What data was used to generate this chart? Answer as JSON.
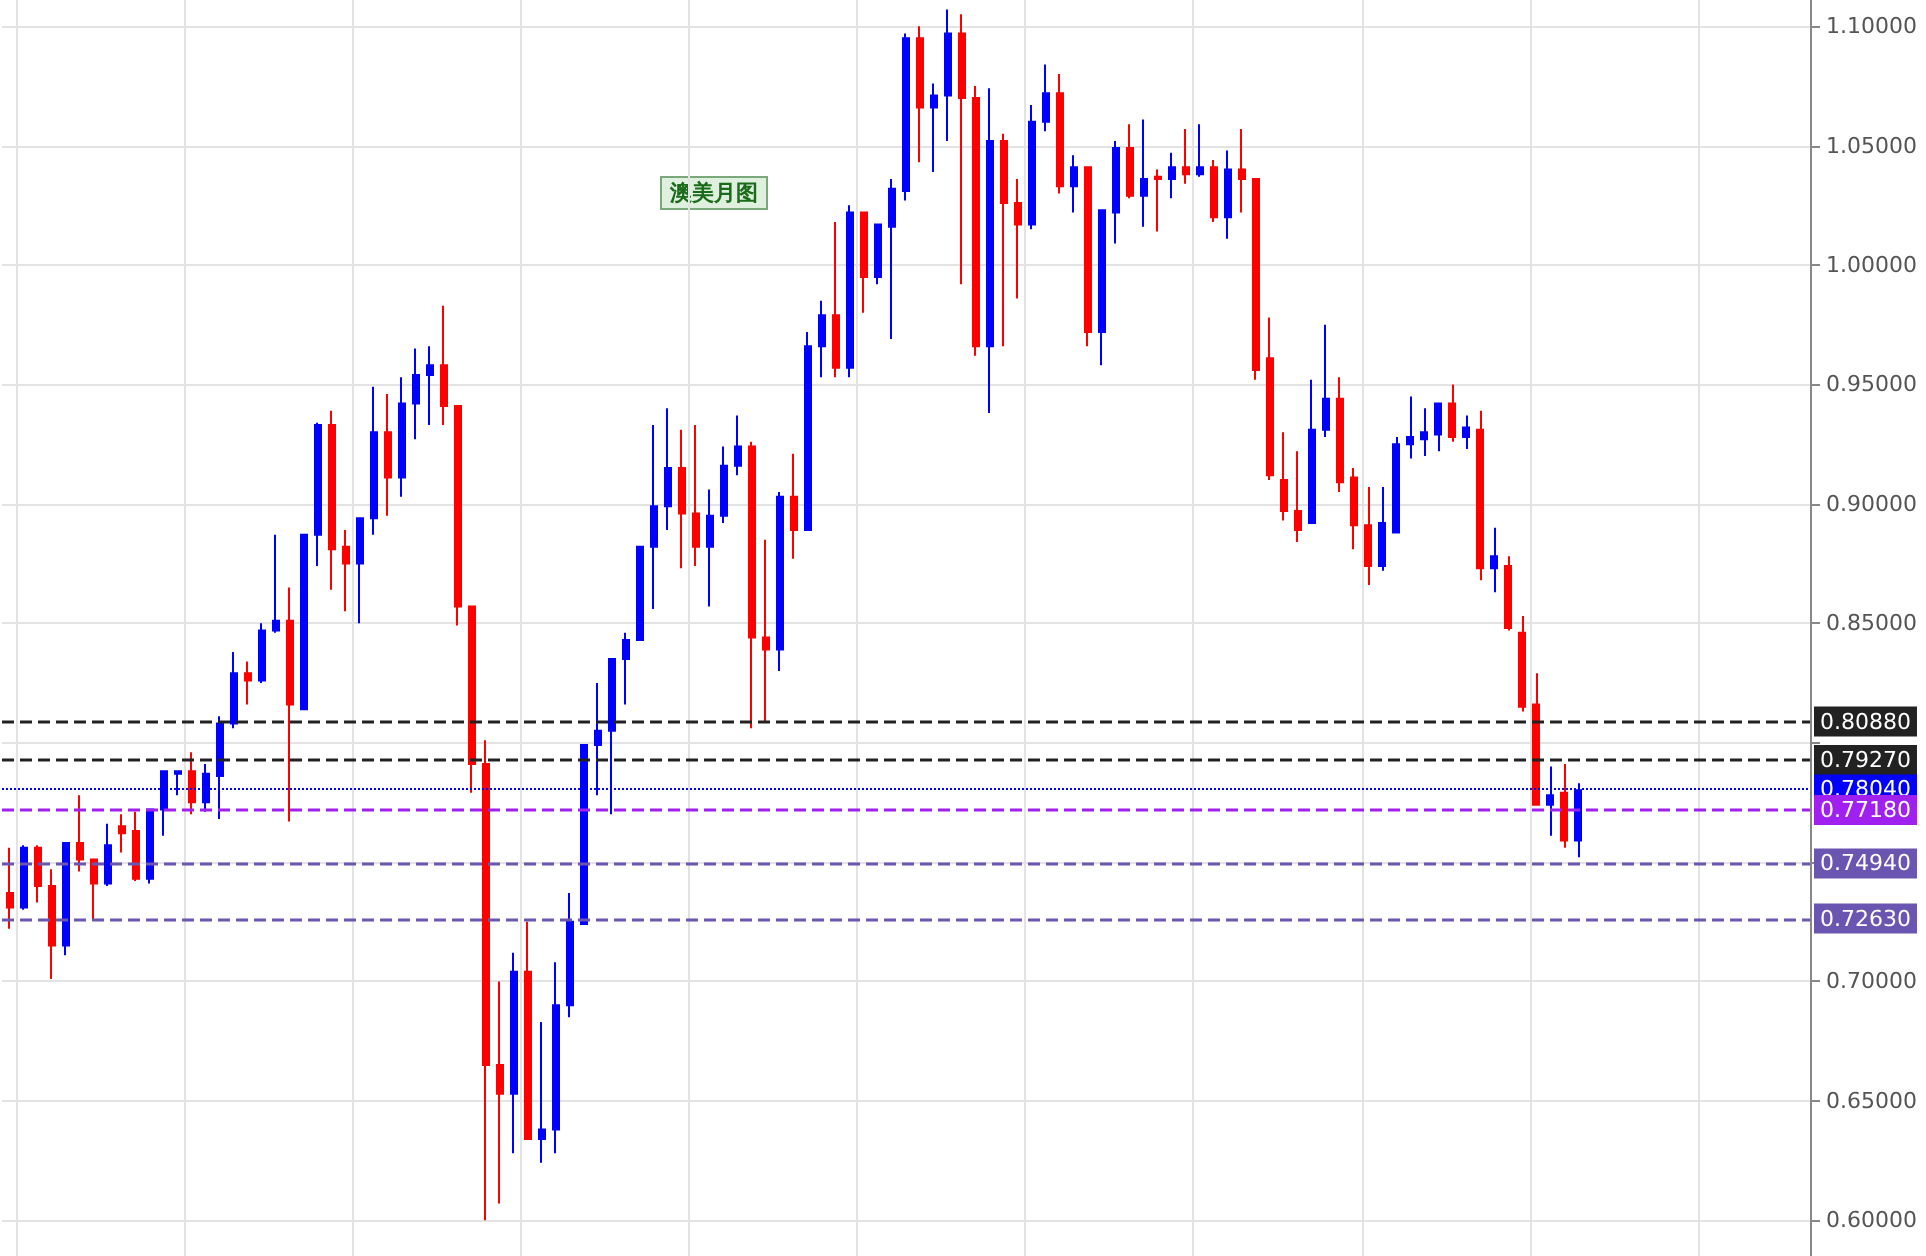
{
  "chart_data": {
    "type": "candlestick",
    "categories": [
      null,
      null,
      null,
      null,
      null,
      null,
      null,
      null,
      null,
      null,
      null,
      null,
      null,
      null,
      null,
      null,
      null,
      null,
      null,
      null,
      null,
      null,
      null,
      null,
      null,
      null,
      null,
      null,
      null,
      null,
      null,
      null,
      null,
      null,
      null,
      null,
      null,
      null,
      null,
      null,
      null,
      null,
      null,
      null,
      null,
      null,
      null,
      null,
      null,
      null,
      null,
      null,
      null,
      null,
      null,
      null,
      null,
      null,
      null,
      null,
      null,
      null,
      null,
      null,
      null,
      null,
      null,
      null,
      null,
      null,
      null,
      null,
      null,
      null,
      null,
      null,
      null,
      null,
      null,
      null,
      null,
      null,
      null,
      null,
      null,
      null,
      null,
      null,
      null,
      null,
      null,
      null,
      null,
      null,
      null,
      null,
      null,
      null,
      null,
      null,
      null,
      null,
      null,
      null,
      null,
      null,
      null,
      null,
      null,
      null,
      null,
      null,
      null,
      null,
      null,
      null,
      null,
      null,
      null,
      null,
      null,
      null,
      null,
      null,
      null,
      null,
      null,
      null,
      null
    ],
    "ohlc": [
      [
        0.737,
        0.756,
        0.722,
        0.731
      ],
      [
        0.731,
        0.757,
        0.73,
        0.756
      ],
      [
        0.756,
        0.757,
        0.733,
        0.74
      ],
      [
        0.74,
        0.747,
        0.701,
        0.715
      ],
      [
        0.715,
        0.758,
        0.711,
        0.758
      ],
      [
        0.758,
        0.778,
        0.746,
        0.751
      ],
      [
        0.751,
        0.751,
        0.726,
        0.741
      ],
      [
        0.741,
        0.766,
        0.74,
        0.757
      ],
      [
        0.765,
        0.77,
        0.754,
        0.762
      ],
      [
        0.763,
        0.771,
        0.742,
        0.743
      ],
      [
        0.743,
        0.772,
        0.741,
        0.772
      ],
      [
        0.772,
        0.788,
        0.761,
        0.788
      ],
      [
        0.787,
        0.788,
        0.778,
        0.788
      ],
      [
        0.788,
        0.796,
        0.77,
        0.775
      ],
      [
        0.775,
        0.791,
        0.771,
        0.787
      ],
      [
        0.786,
        0.811,
        0.768,
        0.808
      ],
      [
        0.808,
        0.838,
        0.806,
        0.829
      ],
      [
        0.829,
        0.834,
        0.816,
        0.826
      ],
      [
        0.826,
        0.85,
        0.825,
        0.847
      ],
      [
        0.847,
        0.887,
        0.846,
        0.851
      ],
      [
        0.851,
        0.865,
        0.767,
        0.816
      ],
      [
        0.814,
        0.887,
        0.814,
        0.887
      ],
      [
        0.887,
        0.934,
        0.874,
        0.933
      ],
      [
        0.933,
        0.939,
        0.864,
        0.881
      ],
      [
        0.882,
        0.889,
        0.855,
        0.875
      ],
      [
        0.875,
        0.894,
        0.85,
        0.894
      ],
      [
        0.894,
        0.949,
        0.887,
        0.93
      ],
      [
        0.93,
        0.946,
        0.895,
        0.911
      ],
      [
        0.911,
        0.953,
        0.903,
        0.942
      ],
      [
        0.942,
        0.965,
        0.927,
        0.954
      ],
      [
        0.954,
        0.966,
        0.933,
        0.958
      ],
      [
        0.958,
        0.983,
        0.933,
        0.941
      ],
      [
        0.941,
        0.941,
        0.849,
        0.857
      ],
      [
        0.857,
        0.857,
        0.779,
        0.791
      ],
      [
        0.791,
        0.801,
        0.6,
        0.665
      ],
      [
        0.665,
        0.7,
        0.607,
        0.653
      ],
      [
        0.653,
        0.712,
        0.628,
        0.704
      ],
      [
        0.704,
        0.725,
        0.634,
        0.634
      ],
      [
        0.634,
        0.683,
        0.624,
        0.638
      ],
      [
        0.638,
        0.708,
        0.628,
        0.69
      ],
      [
        0.69,
        0.737,
        0.685,
        0.725
      ],
      [
        0.724,
        0.799,
        0.724,
        0.799
      ],
      [
        0.799,
        0.825,
        0.778,
        0.805
      ],
      [
        0.805,
        0.835,
        0.77,
        0.835
      ],
      [
        0.835,
        0.846,
        0.816,
        0.843
      ],
      [
        0.843,
        0.882,
        0.843,
        0.882
      ],
      [
        0.882,
        0.933,
        0.856,
        0.899
      ],
      [
        0.899,
        0.94,
        0.889,
        0.915
      ],
      [
        0.915,
        0.931,
        0.873,
        0.896
      ],
      [
        0.896,
        0.933,
        0.874,
        0.882
      ],
      [
        0.882,
        0.906,
        0.857,
        0.895
      ],
      [
        0.895,
        0.924,
        0.892,
        0.916
      ],
      [
        0.916,
        0.937,
        0.912,
        0.924
      ],
      [
        0.924,
        0.926,
        0.806,
        0.844
      ],
      [
        0.844,
        0.885,
        0.809,
        0.839
      ],
      [
        0.839,
        0.905,
        0.83,
        0.903
      ],
      [
        0.903,
        0.921,
        0.877,
        0.889
      ],
      [
        0.889,
        0.972,
        0.889,
        0.966
      ],
      [
        0.966,
        0.985,
        0.953,
        0.979
      ],
      [
        0.979,
        1.018,
        0.953,
        0.957
      ],
      [
        0.957,
        1.025,
        0.953,
        1.022
      ],
      [
        1.022,
        1.022,
        0.98,
        0.995
      ],
      [
        0.995,
        1.017,
        0.992,
        1.017
      ],
      [
        1.016,
        1.036,
        0.969,
        1.032
      ],
      [
        1.031,
        1.097,
        1.027,
        1.095
      ],
      [
        1.095,
        1.1,
        1.043,
        1.066
      ],
      [
        1.066,
        1.076,
        1.039,
        1.071
      ],
      [
        1.071,
        1.107,
        1.052,
        1.097
      ],
      [
        1.097,
        1.105,
        0.992,
        1.07
      ],
      [
        1.07,
        1.075,
        0.962,
        0.966
      ],
      [
        0.966,
        1.074,
        0.938,
        1.052
      ],
      [
        1.052,
        1.055,
        0.966,
        1.026
      ],
      [
        1.026,
        1.036,
        0.986,
        1.017
      ],
      [
        1.017,
        1.067,
        1.015,
        1.06
      ],
      [
        1.06,
        1.084,
        1.056,
        1.072
      ],
      [
        1.072,
        1.08,
        1.03,
        1.033
      ],
      [
        1.033,
        1.046,
        1.022,
        1.041
      ],
      [
        1.041,
        1.041,
        0.966,
        0.972
      ],
      [
        0.972,
        1.023,
        0.958,
        1.023
      ],
      [
        1.022,
        1.052,
        1.009,
        1.049
      ],
      [
        1.049,
        1.059,
        1.028,
        1.029
      ],
      [
        1.029,
        1.061,
        1.016,
        1.036
      ],
      [
        1.037,
        1.04,
        1.014,
        1.036
      ],
      [
        1.036,
        1.047,
        1.028,
        1.041
      ],
      [
        1.041,
        1.057,
        1.034,
        1.038
      ],
      [
        1.038,
        1.059,
        1.037,
        1.041
      ],
      [
        1.041,
        1.044,
        1.018,
        1.02
      ],
      [
        1.02,
        1.048,
        1.011,
        1.04
      ],
      [
        1.04,
        1.057,
        1.022,
        1.036
      ],
      [
        1.036,
        1.036,
        0.952,
        0.956
      ],
      [
        0.961,
        0.978,
        0.91,
        0.912
      ],
      [
        0.91,
        0.93,
        0.893,
        0.897
      ],
      [
        0.897,
        0.922,
        0.884,
        0.889
      ],
      [
        0.892,
        0.952,
        0.892,
        0.931
      ],
      [
        0.931,
        0.975,
        0.928,
        0.944
      ],
      [
        0.944,
        0.953,
        0.905,
        0.909
      ],
      [
        0.911,
        0.915,
        0.881,
        0.891
      ],
      [
        0.891,
        0.907,
        0.866,
        0.874
      ],
      [
        0.874,
        0.907,
        0.872,
        0.892
      ],
      [
        0.888,
        0.928,
        0.888,
        0.925
      ],
      [
        0.925,
        0.945,
        0.919,
        0.928
      ],
      [
        0.927,
        0.94,
        0.92,
        0.93
      ],
      [
        0.929,
        0.942,
        0.922,
        0.942
      ],
      [
        0.942,
        0.95,
        0.926,
        0.928
      ],
      [
        0.928,
        0.937,
        0.923,
        0.932
      ],
      [
        0.931,
        0.939,
        0.868,
        0.873
      ],
      [
        0.873,
        0.89,
        0.863,
        0.878
      ],
      [
        0.874,
        0.878,
        0.847,
        0.848
      ],
      [
        0.846,
        0.853,
        0.813,
        0.815
      ],
      [
        0.816,
        0.829,
        0.774,
        0.774
      ],
      [
        0.774,
        0.79,
        0.761,
        0.778
      ],
      [
        0.779,
        0.791,
        0.756,
        0.759
      ],
      [
        0.759,
        0.783,
        0.752,
        0.78
      ],
      null,
      null,
      null,
      null,
      null,
      null,
      null,
      null,
      null,
      null,
      null,
      null,
      null,
      null,
      null,
      null
    ],
    "colors": [
      "#ff0000",
      "#0000ff",
      "#ff0000",
      "#ff0000",
      "#0000ff",
      "#ff0000",
      "#ff0000",
      "#0000ff",
      "#ff0000",
      "#ff0000",
      "#0000ff",
      "#0000ff",
      "#0000ff",
      "#ff0000",
      "#0000ff",
      "#0000ff",
      "#0000ff",
      "#ff0000",
      "#0000ff",
      "#0000ff",
      "#ff0000",
      "#0000ff",
      "#0000ff",
      "#ff0000",
      "#ff0000",
      "#0000ff",
      "#0000ff",
      "#ff0000",
      "#0000ff",
      "#0000ff",
      "#0000ff",
      "#ff0000",
      "#ff0000",
      "#ff0000",
      "#ff0000",
      "#ff0000",
      "#0000ff",
      "#ff0000",
      "#0000ff",
      "#0000ff",
      "#0000ff",
      "#0000ff",
      "#0000ff",
      "#0000ff",
      "#0000ff",
      "#0000ff",
      "#0000ff",
      "#0000ff",
      "#ff0000",
      "#ff0000",
      "#0000ff",
      "#0000ff",
      "#0000ff",
      "#ff0000",
      "#ff0000",
      "#0000ff",
      "#ff0000",
      "#0000ff",
      "#0000ff",
      "#ff0000",
      "#0000ff",
      "#ff0000",
      "#0000ff",
      "#0000ff",
      "#0000ff",
      "#ff0000",
      "#0000ff",
      "#0000ff",
      "#ff0000",
      "#ff0000",
      "#0000ff",
      "#ff0000",
      "#ff0000",
      "#0000ff",
      "#0000ff",
      "#ff0000",
      "#0000ff",
      "#ff0000",
      "#0000ff",
      "#0000ff",
      "#ff0000",
      "#0000ff",
      "#ff0000",
      "#0000ff",
      "#ff0000",
      "#0000ff",
      "#ff0000",
      "#0000ff",
      "#ff0000",
      "#ff0000",
      "#ff0000",
      "#ff0000",
      "#ff0000",
      "#0000ff",
      "#0000ff",
      "#ff0000",
      "#ff0000",
      "#ff0000",
      "#0000ff",
      "#0000ff",
      "#0000ff",
      "#0000ff",
      "#0000ff",
      "#ff0000",
      "#0000ff",
      "#ff0000",
      "#0000ff",
      "#ff0000",
      "#ff0000",
      "#ff0000",
      "#0000ff",
      "#ff0000",
      "#0000ff",
      null,
      null,
      null,
      null,
      null,
      null,
      null,
      null,
      null,
      null,
      null,
      null,
      null,
      null,
      null,
      null
    ],
    "ylim": [
      0.585,
      1.111
    ],
    "yticks": [
      {
        "value": 0.6,
        "label": "0.60000"
      },
      {
        "value": 0.65,
        "label": "0.65000"
      },
      {
        "value": 0.7,
        "label": "0.70000"
      },
      {
        "value": 0.75,
        "label": null
      },
      {
        "value": 0.8,
        "label": null
      },
      {
        "value": 0.85,
        "label": "0.85000"
      },
      {
        "value": 0.9,
        "label": "0.90000"
      },
      {
        "value": 0.95,
        "label": "0.95000"
      },
      {
        "value": 1.0,
        "label": "1.00000"
      },
      {
        "value": 1.05,
        "label": "1.05000"
      },
      {
        "value": 1.1,
        "label": "1.10000"
      }
    ],
    "ref_lines": [
      {
        "axis": "y",
        "value": 0.8088,
        "label": "0.80880",
        "color": "#222222",
        "line_style": "dashed"
      },
      {
        "axis": "y",
        "value": 0.7927,
        "label": "0.79270",
        "color": "#222222",
        "line_style": "dashed"
      },
      {
        "axis": "y",
        "value": 0.7804,
        "label": "0.78040",
        "color": "#0000ff",
        "line_style": "dotted"
      },
      {
        "axis": "y",
        "value": 0.7718,
        "label": "0.77180",
        "color": "#a020f0",
        "line_style": "dashed"
      },
      {
        "axis": "y",
        "value": 0.7494,
        "label": "0.74940",
        "color": "#6a55b0",
        "line_style": "dashed"
      },
      {
        "axis": "y",
        "value": 0.7263,
        "label": "0.72630",
        "color": "#6a55b0",
        "line_style": "dashed"
      }
    ],
    "annotations": [
      "澳美月图"
    ],
    "grid": true
  }
}
